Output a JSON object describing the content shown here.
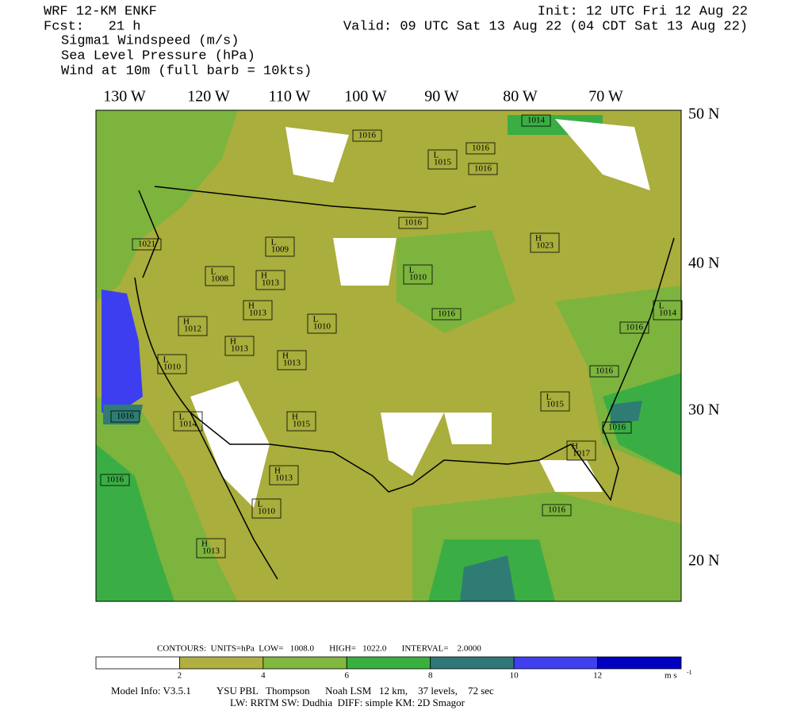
{
  "header": {
    "model": "WRF 12-KM ENKF",
    "fcst": "Fcst:   21 h",
    "init": "Init: 12 UTC Fri 12 Aug 22",
    "valid": "Valid: 09 UTC Sat 13 Aug 22 (04 CDT Sat 13 Aug 22)",
    "fields": [
      "Sigma1 Windspeed (m/s)",
      "Sea Level Pressure (hPa)",
      "Wind at 10m (full barb = 10kts)"
    ]
  },
  "map": {
    "longitudes": [
      "130 W",
      "120 W",
      "110 W",
      "100 W",
      "90 W",
      "80 W",
      "70 W"
    ],
    "latitudes": [
      "50 N",
      "40 N",
      "30 N",
      "20 N"
    ],
    "pressure_labels": [
      {
        "value": "1016"
      },
      {
        "letter": "L",
        "value": "1015"
      },
      {
        "value": "1016"
      },
      {
        "value": "1016"
      },
      {
        "value": "1014"
      },
      {
        "value": "1016"
      },
      {
        "letter": "H",
        "value": "1023"
      },
      {
        "value": "1021"
      },
      {
        "letter": "L",
        "value": "1009"
      },
      {
        "letter": "L",
        "value": "1008"
      },
      {
        "letter": "H",
        "value": "1013"
      },
      {
        "letter": "L",
        "value": "1010"
      },
      {
        "letter": "H",
        "value": "1013"
      },
      {
        "value": "1016"
      },
      {
        "letter": "L",
        "value": "1010"
      },
      {
        "letter": "H",
        "value": "1012"
      },
      {
        "letter": "H",
        "value": "1013"
      },
      {
        "letter": "H",
        "value": "1013"
      },
      {
        "letter": "L",
        "value": "1010"
      },
      {
        "value": "1016"
      },
      {
        "letter": "L",
        "value": "1014"
      },
      {
        "value": "1016"
      },
      {
        "letter": "L",
        "value": "1015"
      },
      {
        "value": "1016"
      },
      {
        "letter": "L",
        "value": "1014"
      },
      {
        "letter": "H",
        "value": "1015"
      },
      {
        "value": "1016"
      },
      {
        "letter": "H",
        "value": "1017"
      },
      {
        "value": "1016"
      },
      {
        "letter": "H",
        "value": "1013"
      },
      {
        "letter": "L",
        "value": "1010"
      },
      {
        "value": "1016"
      },
      {
        "letter": "H",
        "value": "1013"
      }
    ]
  },
  "contours": "CONTOURS:  UNITS=hPa  LOW=   1008.0       HIGH=   1022.0       INTERVAL=    2.0000",
  "colorbar": {
    "labels": [
      2,
      4,
      6,
      8,
      10,
      12
    ],
    "unit": "m s",
    "unit_exponent": "-1"
  },
  "model_info": [
    "Model Info: V3.5.1          YSU PBL   Thompson      Noah LSM   12 km,    37 levels,    72 sec",
    "LW: RRTM SW: Dudhia  DIFF: simple KM: 2D Smagor"
  ]
}
